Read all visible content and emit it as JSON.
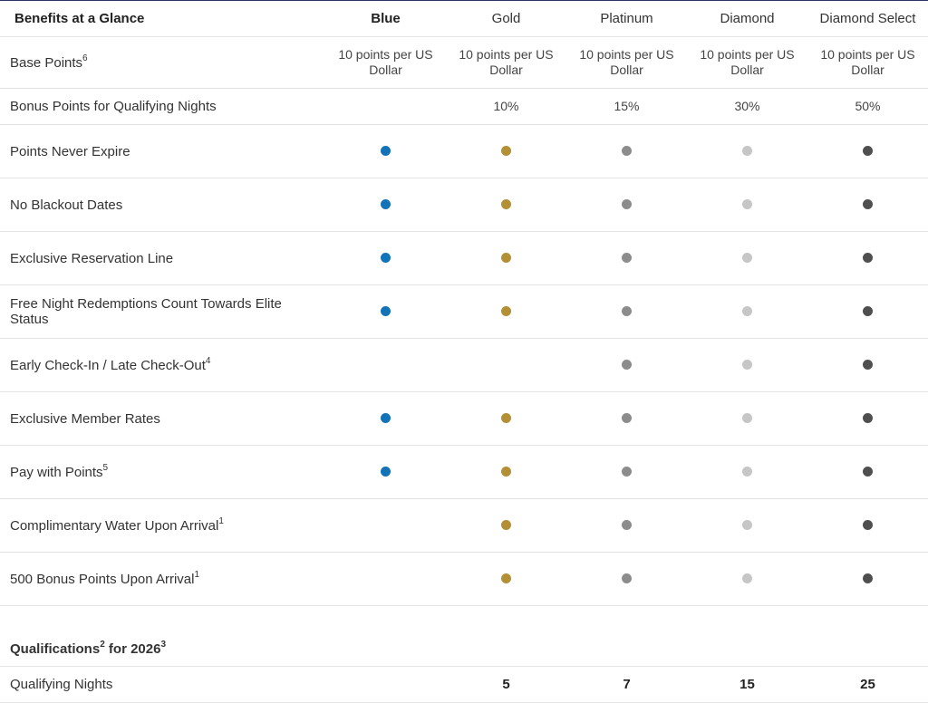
{
  "header": {
    "title": "Benefits at a Glance",
    "tiers": [
      "Blue",
      "Gold",
      "Platinum",
      "Diamond",
      "Diamond Select"
    ]
  },
  "colors": {
    "blue": "#1273b8",
    "gold": "#b38f36",
    "platinum": "#8c8c8c",
    "diamond": "#c6c6c6",
    "diamond_select": "#4f4f4f"
  },
  "base_points": {
    "label": "Base Points",
    "sup": "6",
    "values": [
      "10 points per US Dollar",
      "10 points per US Dollar",
      "10 points per US Dollar",
      "10 points per US Dollar",
      "10 points per US Dollar"
    ]
  },
  "bonus_points": {
    "label": "Bonus Points for Qualifying Nights",
    "values": [
      "",
      "10%",
      "15%",
      "30%",
      "50%"
    ]
  },
  "benefits": [
    {
      "label": "Points Never Expire",
      "sup": "",
      "tiers": [
        true,
        true,
        true,
        true,
        true
      ]
    },
    {
      "label": "No Blackout Dates",
      "sup": "",
      "tiers": [
        true,
        true,
        true,
        true,
        true
      ]
    },
    {
      "label": "Exclusive Reservation Line",
      "sup": "",
      "tiers": [
        true,
        true,
        true,
        true,
        true
      ]
    },
    {
      "label": "Free Night Redemptions Count Towards Elite Status",
      "sup": "",
      "tiers": [
        true,
        true,
        true,
        true,
        true
      ]
    },
    {
      "label": "Early Check-In / Late Check-Out",
      "sup": "4",
      "tiers": [
        false,
        false,
        true,
        true,
        true
      ]
    },
    {
      "label": "Exclusive Member Rates",
      "sup": "",
      "tiers": [
        true,
        true,
        true,
        true,
        true
      ]
    },
    {
      "label": "Pay with Points",
      "sup": "5",
      "tiers": [
        true,
        true,
        true,
        true,
        true
      ]
    },
    {
      "label": "Complimentary Water Upon Arrival",
      "sup": "1",
      "tiers": [
        false,
        true,
        true,
        true,
        true
      ]
    },
    {
      "label": "500 Bonus Points Upon Arrival",
      "sup": "1",
      "tiers": [
        false,
        true,
        true,
        true,
        true
      ]
    }
  ],
  "qualifications": {
    "label": "Qualifications",
    "sup1": "2",
    "label2": " for 2026",
    "sup2": "3"
  },
  "qualifying_nights": {
    "label": "Qualifying Nights",
    "values": [
      "",
      "5",
      "7",
      "15",
      "25"
    ]
  }
}
